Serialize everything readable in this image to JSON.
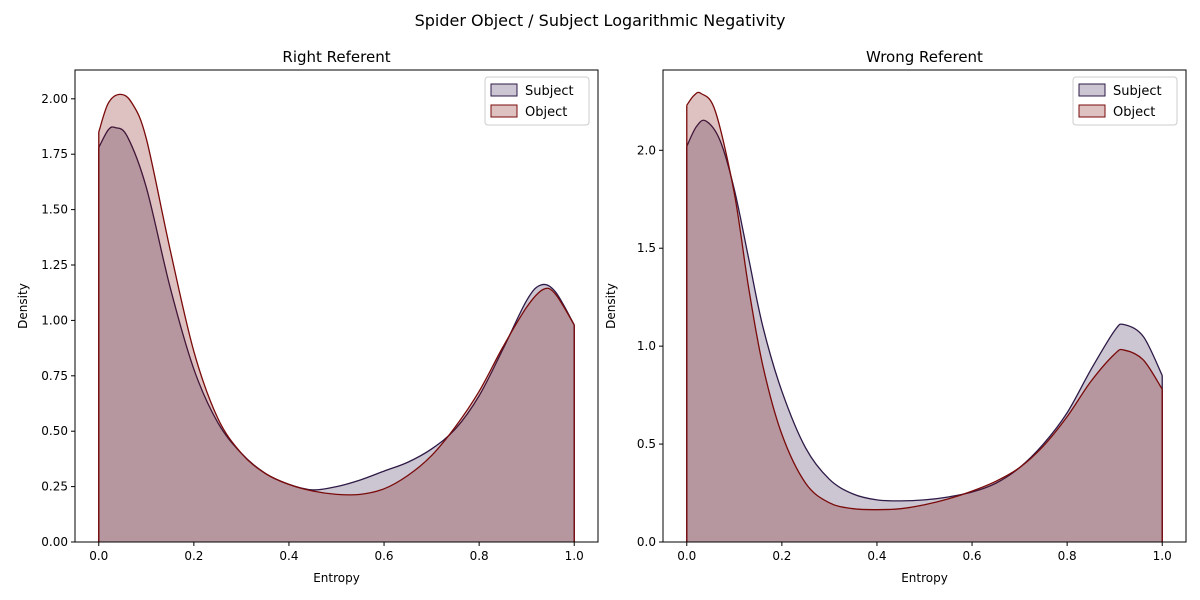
{
  "figure_title": "Spider Object / Subject Logarithmic Negativity",
  "colors": {
    "subject": "#2e1a47",
    "object": "#7a0a0a"
  },
  "chart_data": [
    {
      "type": "area",
      "title": "Right Referent",
      "xlabel": "Entropy",
      "ylabel": "Density",
      "xlim": [
        -0.05,
        1.05
      ],
      "ylim": [
        0,
        2.13
      ],
      "xticks": [
        0.0,
        0.2,
        0.4,
        0.6,
        0.8,
        1.0
      ],
      "xtick_labels": [
        "0.0",
        "0.2",
        "0.4",
        "0.6",
        "0.8",
        "1.0"
      ],
      "yticks": [
        0.0,
        0.25,
        0.5,
        0.75,
        1.0,
        1.25,
        1.5,
        1.75,
        2.0
      ],
      "ytick_labels": [
        "0.00",
        "0.25",
        "0.50",
        "0.75",
        "1.00",
        "1.25",
        "1.50",
        "1.75",
        "2.00"
      ],
      "legend": "top-right",
      "grid": false,
      "series": [
        {
          "name": "Subject",
          "x": [
            0.0,
            0.02,
            0.035,
            0.06,
            0.1,
            0.15,
            0.2,
            0.25,
            0.3,
            0.35,
            0.4,
            0.45,
            0.5,
            0.55,
            0.6,
            0.65,
            0.7,
            0.75,
            0.8,
            0.85,
            0.9,
            0.93,
            0.96,
            1.0
          ],
          "values": [
            1.78,
            1.86,
            1.87,
            1.83,
            1.6,
            1.15,
            0.78,
            0.54,
            0.4,
            0.31,
            0.26,
            0.235,
            0.25,
            0.28,
            0.32,
            0.36,
            0.42,
            0.51,
            0.66,
            0.87,
            1.09,
            1.16,
            1.13,
            0.98
          ]
        },
        {
          "name": "Object",
          "x": [
            0.0,
            0.02,
            0.045,
            0.07,
            0.1,
            0.15,
            0.2,
            0.25,
            0.3,
            0.35,
            0.4,
            0.45,
            0.5,
            0.55,
            0.6,
            0.65,
            0.7,
            0.75,
            0.8,
            0.85,
            0.9,
            0.935,
            0.96,
            1.0
          ],
          "values": [
            1.85,
            1.98,
            2.02,
            1.98,
            1.82,
            1.32,
            0.86,
            0.56,
            0.4,
            0.31,
            0.26,
            0.23,
            0.215,
            0.215,
            0.24,
            0.3,
            0.39,
            0.52,
            0.68,
            0.88,
            1.06,
            1.14,
            1.12,
            0.98
          ]
        }
      ]
    },
    {
      "type": "area",
      "title": "Wrong Referent",
      "xlabel": "Entropy",
      "ylabel": "Density",
      "xlim": [
        -0.05,
        1.05
      ],
      "ylim": [
        0,
        2.41
      ],
      "xticks": [
        0.0,
        0.2,
        0.4,
        0.6,
        0.8,
        1.0
      ],
      "xtick_labels": [
        "0.0",
        "0.2",
        "0.4",
        "0.6",
        "0.8",
        "1.0"
      ],
      "yticks": [
        0.0,
        0.5,
        1.0,
        1.5,
        2.0
      ],
      "ytick_labels": [
        "0.0",
        "0.5",
        "1.0",
        "1.5",
        "2.0"
      ],
      "legend": "top-right",
      "grid": false,
      "series": [
        {
          "name": "Subject",
          "x": [
            0.0,
            0.02,
            0.04,
            0.07,
            0.1,
            0.13,
            0.16,
            0.2,
            0.25,
            0.3,
            0.35,
            0.4,
            0.45,
            0.5,
            0.55,
            0.6,
            0.65,
            0.7,
            0.75,
            0.8,
            0.85,
            0.9,
            0.92,
            0.96,
            1.0
          ],
          "values": [
            2.02,
            2.12,
            2.15,
            2.05,
            1.8,
            1.45,
            1.1,
            0.77,
            0.48,
            0.32,
            0.245,
            0.215,
            0.21,
            0.215,
            0.23,
            0.255,
            0.3,
            0.38,
            0.5,
            0.66,
            0.88,
            1.08,
            1.11,
            1.05,
            0.85
          ]
        },
        {
          "name": "Object",
          "x": [
            0.0,
            0.015,
            0.03,
            0.06,
            0.1,
            0.13,
            0.16,
            0.2,
            0.25,
            0.3,
            0.35,
            0.4,
            0.45,
            0.5,
            0.55,
            0.6,
            0.65,
            0.7,
            0.75,
            0.8,
            0.85,
            0.9,
            0.92,
            0.96,
            1.0
          ],
          "values": [
            2.23,
            2.28,
            2.29,
            2.2,
            1.78,
            1.3,
            0.9,
            0.55,
            0.3,
            0.2,
            0.17,
            0.165,
            0.17,
            0.19,
            0.22,
            0.26,
            0.31,
            0.38,
            0.49,
            0.64,
            0.82,
            0.96,
            0.98,
            0.93,
            0.78
          ]
        }
      ]
    }
  ]
}
